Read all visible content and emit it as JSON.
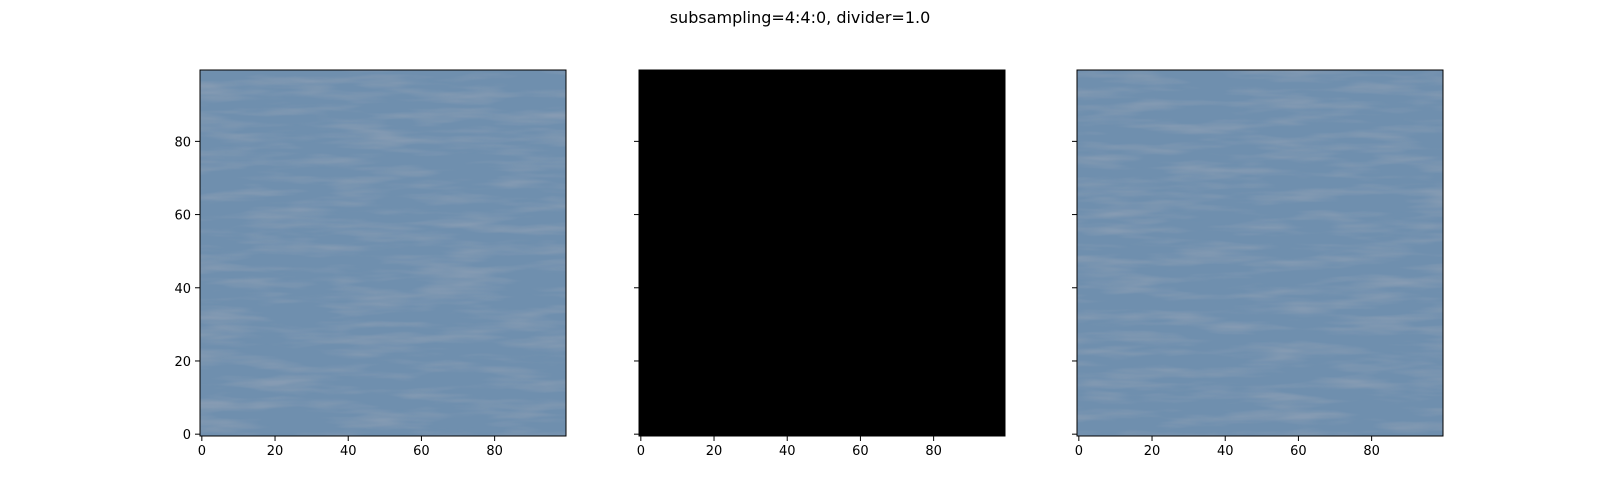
{
  "figure": {
    "title": "subsampling=4:4:0, divider=1.0"
  },
  "chart_data": [
    {
      "type": "heatmap",
      "image_kind": "photo-water-texture",
      "base_color": "#6f8fae",
      "shade_color": "#3f5a78",
      "image_size": [
        100,
        100
      ],
      "xlim": [
        -0.5,
        99.5
      ],
      "ylim": [
        99.5,
        -0.5
      ],
      "xticks": [
        0,
        20,
        40,
        60,
        80
      ],
      "yticks": [
        0,
        20,
        40,
        60,
        80
      ],
      "show_yticklabels": true
    },
    {
      "type": "heatmap",
      "image_kind": "solid",
      "base_color": "#000000",
      "image_size": [
        100,
        100
      ],
      "xlim": [
        -0.5,
        99.5
      ],
      "ylim": [
        99.5,
        -0.5
      ],
      "xticks": [
        0,
        20,
        40,
        60,
        80
      ],
      "yticks": [
        0,
        20,
        40,
        60,
        80
      ],
      "show_yticklabels": false
    },
    {
      "type": "heatmap",
      "image_kind": "photo-water-texture",
      "base_color": "#6f8fae",
      "shade_color": "#3f5a78",
      "image_size": [
        100,
        100
      ],
      "xlim": [
        -0.5,
        99.5
      ],
      "ylim": [
        99.5,
        -0.5
      ],
      "xticks": [
        0,
        20,
        40,
        60,
        80
      ],
      "yticks": [
        0,
        20,
        40,
        60,
        80
      ],
      "show_yticklabels": false
    }
  ]
}
